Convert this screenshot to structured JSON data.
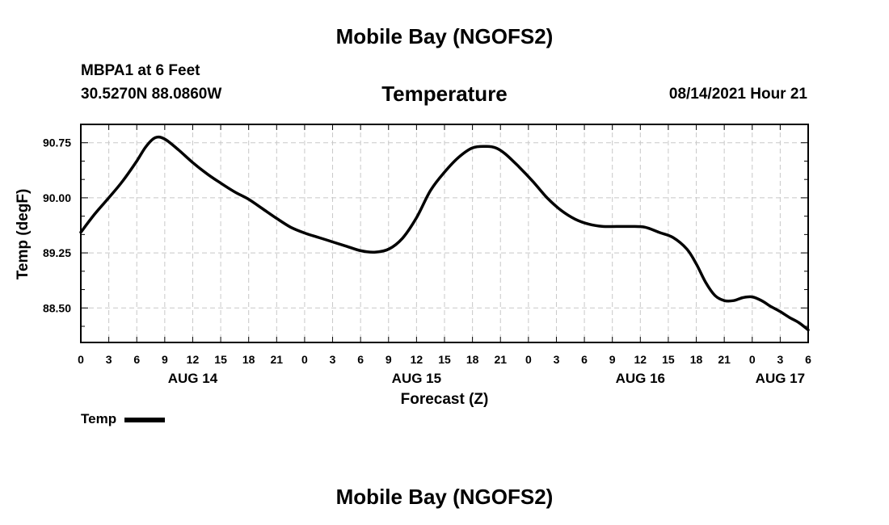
{
  "header": {
    "top_title": "Mobile Bay (NGOFS2)",
    "station": "MBPA1 at 6 Feet",
    "coords": "30.5270N  88.0860W",
    "chart_title": "Temperature",
    "forecast_time": "08/14/2021 Hour 21"
  },
  "footer": {
    "bottom_title": "Mobile Bay (NGOFS2)"
  },
  "legend": {
    "label": "Temp",
    "color": "#000000"
  },
  "chart_data": {
    "type": "line",
    "title": "Temperature",
    "xlabel": "Forecast (Z)",
    "ylabel": "Temp (degF)",
    "x_unit": "hours from 08/14 00Z",
    "xlim": [
      0,
      78
    ],
    "ylim": [
      88.03,
      91.0
    ],
    "yticks": [
      88.5,
      89.25,
      90.0,
      90.75
    ],
    "ytick_labels": [
      "88.50",
      "89.25",
      "90.00",
      "90.75"
    ],
    "xtick_labels": [
      "0",
      "3",
      "6",
      "9",
      "12",
      "15",
      "18",
      "21",
      "0",
      "3",
      "6",
      "9",
      "12",
      "15",
      "18",
      "21",
      "0",
      "3",
      "6",
      "9",
      "12",
      "15",
      "18",
      "21",
      "0",
      "3",
      "6"
    ],
    "date_labels": [
      {
        "hour": 12,
        "label": "AUG 14"
      },
      {
        "hour": 36,
        "label": "AUG 15"
      },
      {
        "hour": 60,
        "label": "AUG 16"
      },
      {
        "hour": 75,
        "label": "AUG 17"
      }
    ],
    "grid": true,
    "legend_position": "bottom-left",
    "series": [
      {
        "name": "Temp",
        "color": "#000000",
        "x": [
          0,
          1.5,
          3,
          4.5,
          6,
          7,
          8,
          9,
          10.5,
          12,
          13.5,
          15,
          16.5,
          18,
          19.5,
          21,
          22.5,
          24,
          25.5,
          27,
          28.5,
          30,
          31.5,
          33,
          34.5,
          36,
          37.5,
          39,
          40.5,
          42,
          43.5,
          44.5,
          45.5,
          47,
          48.5,
          50,
          51.5,
          53,
          54.5,
          56,
          57.5,
          59,
          60.5,
          62,
          63.5,
          65,
          66,
          67,
          68,
          69,
          70,
          71,
          72,
          73,
          74,
          75,
          76,
          77,
          78
        ],
        "y": [
          89.53,
          89.78,
          90.0,
          90.23,
          90.5,
          90.7,
          90.82,
          90.8,
          90.65,
          90.48,
          90.33,
          90.2,
          90.08,
          89.98,
          89.85,
          89.72,
          89.6,
          89.52,
          89.46,
          89.4,
          89.34,
          89.28,
          89.26,
          89.3,
          89.45,
          89.73,
          90.1,
          90.35,
          90.55,
          90.68,
          90.7,
          90.68,
          90.6,
          90.42,
          90.22,
          90.0,
          89.83,
          89.71,
          89.64,
          89.61,
          89.61,
          89.61,
          89.6,
          89.53,
          89.46,
          89.3,
          89.1,
          88.85,
          88.67,
          88.6,
          88.6,
          88.64,
          88.65,
          88.6,
          88.52,
          88.45,
          88.37,
          88.3,
          88.2
        ]
      }
    ]
  }
}
